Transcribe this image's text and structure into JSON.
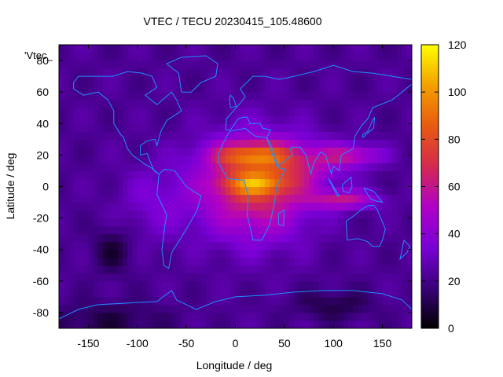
{
  "chart_data": {
    "type": "heatmap",
    "title": "VTEC / TECU 20230415_105.48600",
    "xlabel": "Longitude / deg",
    "ylabel": "Latitude / deg",
    "key_label": "'Vtec_",
    "xlim": [
      -180,
      180
    ],
    "ylim": [
      -90,
      90
    ],
    "x_ticks": [
      -150,
      -100,
      -50,
      0,
      50,
      100,
      150
    ],
    "y_ticks": [
      -80,
      -60,
      -40,
      -20,
      0,
      20,
      40,
      60,
      80
    ],
    "colorbar": {
      "range": [
        0,
        120
      ],
      "ticks": [
        0,
        20,
        40,
        60,
        80,
        100,
        120
      ],
      "palette": [
        "#000000",
        "#3a007a",
        "#7a00d6",
        "#b000c8",
        "#d42a50",
        "#e85a10",
        "#f3a000",
        "#ffff00"
      ]
    },
    "features": {
      "peak_value": 115,
      "peak_regions": [
        {
          "lon": 20,
          "lat": 20
        },
        {
          "lon": 30,
          "lat": 0
        },
        {
          "lon": 110,
          "lat": -10
        }
      ],
      "minimum_region": {
        "lon": -130,
        "lat": -40,
        "value": 5
      }
    },
    "coastlines_color": "#1e90ff",
    "grid": false
  }
}
